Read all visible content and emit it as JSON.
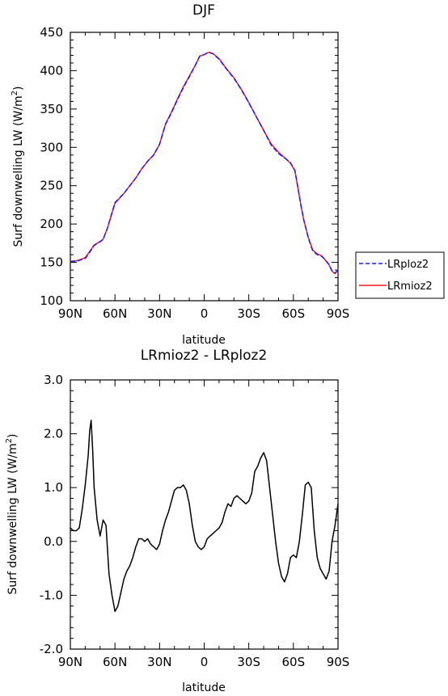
{
  "chart_data": [
    {
      "type": "line",
      "title": "DJF",
      "xlabel": "latitude",
      "ylabel": "Surf downwelling LW (W/m²)",
      "ylabel_main": "Surf downwelling LW (W/m",
      "ylabel_sup": "2",
      "ylabel_end": ")",
      "xlim": [
        -90,
        90
      ],
      "ylim": [
        100,
        450
      ],
      "xticks": [
        -90,
        -60,
        -30,
        0,
        30,
        60,
        90
      ],
      "xticklabels": [
        "90N",
        "60N",
        "30N",
        "0",
        "30S",
        "60S",
        "90S"
      ],
      "yticks": [
        100,
        150,
        200,
        250,
        300,
        350,
        400,
        450
      ],
      "yticklabels": [
        "100",
        "150",
        "200",
        "250",
        "300",
        "350",
        "400",
        "450"
      ],
      "legend_position": "right",
      "series": [
        {
          "name": "LRploz2",
          "color": "#1a1aff",
          "dash": "dashed",
          "x": [
            -90,
            -85,
            -80,
            -77,
            -74,
            -70,
            -68,
            -65,
            -62,
            -60,
            -57,
            -54,
            -50,
            -46,
            -42,
            -38,
            -34,
            -30,
            -26,
            -22,
            -18,
            -14,
            -10,
            -6,
            -3,
            0,
            3,
            6,
            10,
            15,
            20,
            25,
            30,
            35,
            40,
            45,
            50,
            55,
            58,
            61,
            63,
            65,
            67,
            70,
            73,
            76,
            79,
            82,
            84,
            86,
            88,
            90
          ],
          "y": [
            151,
            152,
            155,
            163,
            172,
            177,
            180,
            195,
            215,
            228,
            234,
            240,
            250,
            260,
            272,
            282,
            290,
            304,
            330,
            345,
            362,
            378,
            392,
            407,
            419,
            421,
            424,
            422,
            415,
            402,
            390,
            375,
            358,
            340,
            322,
            303,
            292,
            285,
            280,
            270,
            248,
            225,
            205,
            182,
            165,
            160,
            158,
            152,
            147,
            139,
            136,
            140
          ]
        },
        {
          "name": "LRmioz2",
          "color": "#ff1a1a",
          "dash": "solid",
          "x": [
            -90,
            -85,
            -80,
            -77,
            -74,
            -70,
            -68,
            -65,
            -62,
            -60,
            -57,
            -54,
            -50,
            -46,
            -42,
            -38,
            -34,
            -30,
            -26,
            -22,
            -18,
            -14,
            -10,
            -6,
            -3,
            0,
            3,
            6,
            10,
            15,
            20,
            25,
            30,
            35,
            40,
            45,
            50,
            55,
            58,
            61,
            63,
            65,
            67,
            70,
            73,
            76,
            79,
            82,
            84,
            86,
            88,
            90
          ],
          "y": [
            151.2,
            152.4,
            156.2,
            164.3,
            172.5,
            177.3,
            180.1,
            195.0,
            214.3,
            227.0,
            233.5,
            239.9,
            250.0,
            260.0,
            272.0,
            282.0,
            290.0,
            303.9,
            330.7,
            346.0,
            363.0,
            379.0,
            392.8,
            407.2,
            418.9,
            420.9,
            424.1,
            422.3,
            415.6,
            402.6,
            390.8,
            375.6,
            358.5,
            340.0,
            322.0,
            304.5,
            293.6,
            285.0,
            279.3,
            269.4,
            247.8,
            225.3,
            205.3,
            182.8,
            166.1,
            161.0,
            158.5,
            151.6,
            146.6,
            138.4,
            135.3,
            140.5
          ]
        }
      ]
    },
    {
      "type": "line",
      "title": "LRmioz2 - LRploz2",
      "xlabel": "latitude",
      "ylabel": "Surf downwelling LW (W/m²)",
      "ylabel_main": "Surf downwelling LW (W/m",
      "ylabel_sup": "2",
      "ylabel_end": ")",
      "xlim": [
        -90,
        90
      ],
      "ylim": [
        -2.0,
        3.0
      ],
      "xticks": [
        -90,
        -60,
        -30,
        0,
        30,
        60,
        90
      ],
      "xticklabels": [
        "90N",
        "60N",
        "30N",
        "0",
        "30S",
        "60S",
        "90S"
      ],
      "yticks": [
        -2.0,
        -1.0,
        0.0,
        1.0,
        2.0,
        3.0
      ],
      "yticklabels": [
        "-2.0",
        "-1.0",
        "0.0",
        "1.0",
        "2.0",
        "3.0"
      ],
      "series": [
        {
          "color": "#000000",
          "x": [
            -90,
            -88,
            -86,
            -84,
            -82,
            -80,
            -78,
            -77,
            -76,
            -75,
            -74,
            -72,
            -70,
            -68,
            -66,
            -64,
            -62,
            -60,
            -58,
            -56,
            -54,
            -52,
            -50,
            -48,
            -46,
            -44,
            -42,
            -40,
            -38,
            -36,
            -34,
            -32,
            -30,
            -28,
            -26,
            -24,
            -22,
            -20,
            -18,
            -16,
            -14,
            -12,
            -10,
            -8,
            -6,
            -4,
            -2,
            0,
            2,
            4,
            6,
            8,
            10,
            12,
            14,
            16,
            18,
            20,
            22,
            24,
            26,
            28,
            30,
            32,
            34,
            36,
            38,
            40,
            42,
            44,
            46,
            48,
            50,
            52,
            54,
            56,
            58,
            60,
            62,
            64,
            66,
            68,
            70,
            72,
            74,
            76,
            78,
            80,
            82,
            84,
            86,
            88,
            90
          ],
          "y": [
            0.25,
            0.2,
            0.2,
            0.25,
            0.6,
            1.05,
            1.6,
            2.05,
            2.25,
            1.7,
            1.0,
            0.4,
            0.1,
            0.4,
            0.3,
            -0.6,
            -1.0,
            -1.3,
            -1.2,
            -0.95,
            -0.7,
            -0.55,
            -0.45,
            -0.3,
            -0.1,
            0.05,
            0.05,
            0.0,
            0.05,
            -0.05,
            -0.1,
            -0.15,
            -0.05,
            0.2,
            0.4,
            0.55,
            0.75,
            0.95,
            1.0,
            1.0,
            1.05,
            0.95,
            0.7,
            0.3,
            0.0,
            -0.1,
            -0.15,
            -0.1,
            0.05,
            0.1,
            0.15,
            0.2,
            0.25,
            0.35,
            0.55,
            0.7,
            0.65,
            0.8,
            0.85,
            0.8,
            0.75,
            0.7,
            0.75,
            0.9,
            1.3,
            1.4,
            1.55,
            1.65,
            1.5,
            1.0,
            0.5,
            0.0,
            -0.4,
            -0.65,
            -0.75,
            -0.6,
            -0.3,
            -0.25,
            -0.3,
            0.0,
            0.5,
            1.05,
            1.1,
            1.0,
            0.2,
            -0.3,
            -0.5,
            -0.6,
            -0.7,
            -0.55,
            0.0,
            0.3,
            0.7
          ]
        }
      ]
    }
  ]
}
